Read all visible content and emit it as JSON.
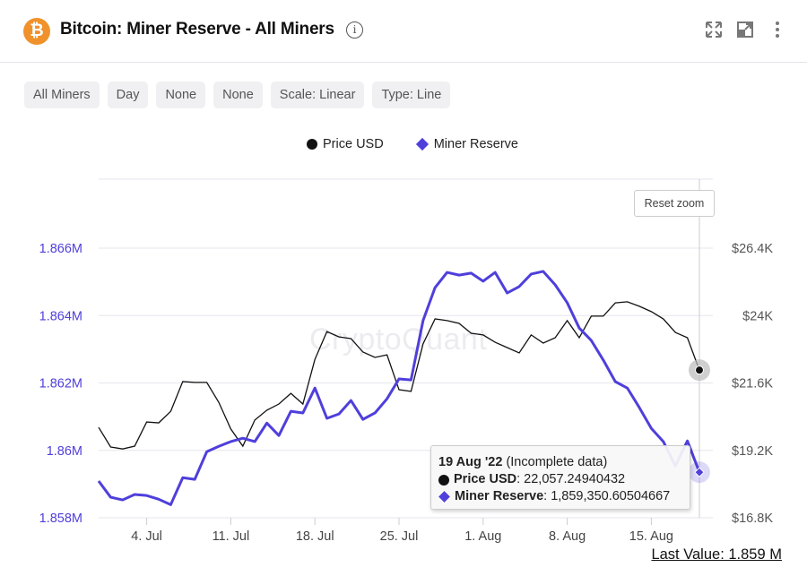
{
  "header": {
    "title": "Bitcoin: Miner Reserve - All Miners",
    "coin_icon": "bitcoin-icon",
    "info_icon": "i",
    "actions": [
      "expand-icon",
      "open-in-new-icon",
      "more-vertical-icon"
    ]
  },
  "toolbar": {
    "chips": [
      "All Miners",
      "Day",
      "None",
      "None",
      "Scale: Linear",
      "Type: Line"
    ]
  },
  "reset_zoom_label": "Reset zoom",
  "watermark": "CryptoQuant",
  "tooltip": {
    "date": "19 Aug '22",
    "note": "(Incomplete data)",
    "price_label": "Price USD",
    "price_value": ": 22,057.24940432",
    "reserve_label": "Miner Reserve",
    "reserve_value": ": 1,859,350.60504667"
  },
  "last_value": "Last Value: 1.859 M",
  "chart_data": {
    "type": "line",
    "colors": {
      "price": "#111111",
      "reserve": "#4f3fdb"
    },
    "legend": [
      "Price USD",
      "Miner Reserve"
    ],
    "legend_placement": "top-center",
    "x": [
      "2022-06-30",
      "2022-07-01",
      "2022-07-02",
      "2022-07-03",
      "2022-07-04",
      "2022-07-05",
      "2022-07-06",
      "2022-07-07",
      "2022-07-08",
      "2022-07-09",
      "2022-07-10",
      "2022-07-11",
      "2022-07-12",
      "2022-07-13",
      "2022-07-14",
      "2022-07-15",
      "2022-07-16",
      "2022-07-17",
      "2022-07-18",
      "2022-07-19",
      "2022-07-20",
      "2022-07-21",
      "2022-07-22",
      "2022-07-23",
      "2022-07-24",
      "2022-07-25",
      "2022-07-26",
      "2022-07-27",
      "2022-07-28",
      "2022-07-29",
      "2022-07-30",
      "2022-07-31",
      "2022-08-01",
      "2022-08-02",
      "2022-08-03",
      "2022-08-04",
      "2022-08-05",
      "2022-08-06",
      "2022-08-07",
      "2022-08-08",
      "2022-08-09",
      "2022-08-10",
      "2022-08-11",
      "2022-08-12",
      "2022-08-13",
      "2022-08-14",
      "2022-08-15",
      "2022-08-16",
      "2022-08-17",
      "2022-08-18",
      "2022-08-19"
    ],
    "x_ticks": [
      "4. Jul",
      "11. Jul",
      "18. Jul",
      "25. Jul",
      "1. Aug",
      "8. Aug",
      "15. Aug"
    ],
    "x_tick_dates": [
      "2022-07-04",
      "2022-07-11",
      "2022-07-18",
      "2022-07-25",
      "2022-08-01",
      "2022-08-08",
      "2022-08-15"
    ],
    "y_left": {
      "ticks": [
        "1.858M",
        "1.86M",
        "1.862M",
        "1.864M",
        "1.866M"
      ],
      "tick_values": [
        1858000,
        1860000,
        1862000,
        1864000,
        1866000
      ],
      "range": [
        1858000,
        1866000
      ]
    },
    "y_right": {
      "ticks": [
        "$16.8K",
        "$19.2K",
        "$21.6K",
        "$24K",
        "$26.4K"
      ],
      "tick_values": [
        16800,
        19200,
        21600,
        24000,
        26400
      ],
      "range": [
        16800,
        26400
      ]
    },
    "grid": true,
    "series": [
      {
        "name": "Price USD",
        "axis": "right",
        "values": [
          20020,
          19320,
          19250,
          19350,
          20210,
          20180,
          20590,
          21650,
          21620,
          21620,
          20910,
          19960,
          19350,
          20280,
          20630,
          20850,
          21230,
          20850,
          22440,
          23430,
          23240,
          23180,
          22700,
          22510,
          22600,
          21360,
          21300,
          22990,
          23880,
          23820,
          23720,
          23370,
          23310,
          23050,
          22860,
          22670,
          23310,
          23020,
          23210,
          23820,
          23210,
          23980,
          23980,
          24450,
          24490,
          24330,
          24140,
          23880,
          23400,
          23210,
          22057.25
        ]
      },
      {
        "name": "Miner Reserve",
        "axis": "left",
        "values": [
          1859090,
          1858610,
          1858530,
          1858690,
          1858660,
          1858550,
          1858390,
          1859190,
          1859140,
          1859960,
          1860120,
          1860260,
          1860360,
          1860260,
          1860810,
          1860440,
          1861160,
          1861110,
          1861850,
          1860950,
          1861080,
          1861480,
          1860920,
          1861110,
          1861530,
          1862120,
          1862090,
          1863850,
          1864830,
          1865280,
          1865200,
          1865260,
          1865020,
          1865280,
          1864670,
          1864860,
          1865230,
          1865310,
          1864910,
          1864380,
          1863630,
          1863260,
          1862680,
          1862040,
          1861850,
          1861270,
          1860650,
          1860260,
          1859540,
          1860280,
          1859350.61
        ]
      }
    ]
  }
}
